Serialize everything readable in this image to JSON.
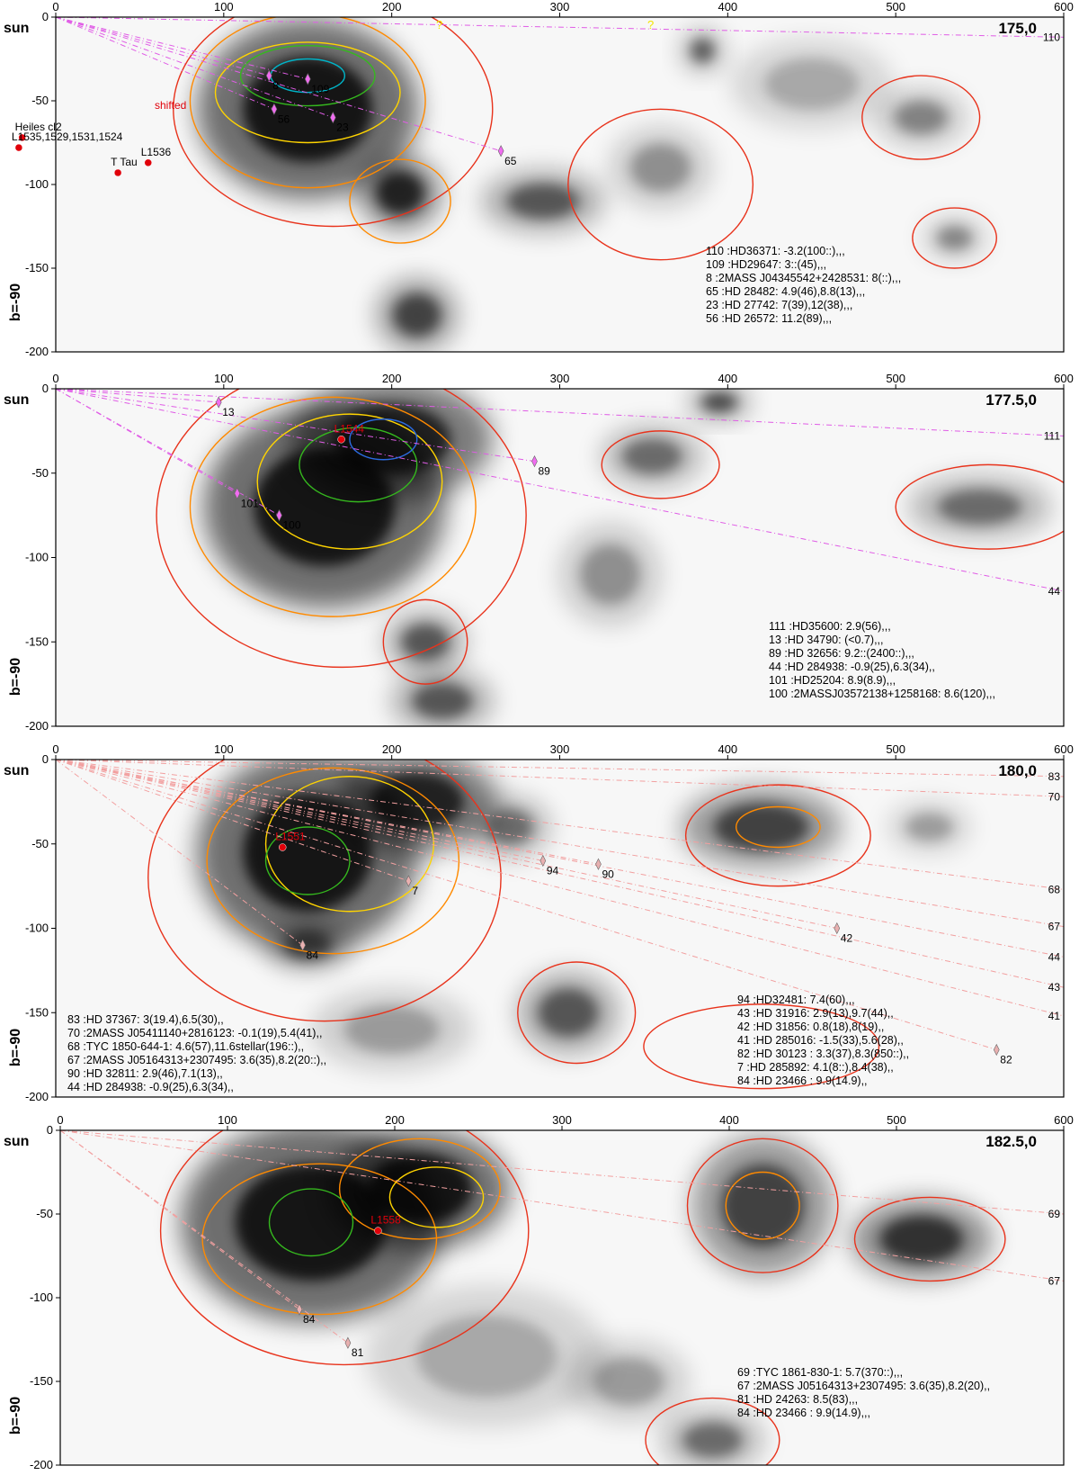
{
  "chart_data": [
    {
      "type": "heatmap",
      "title": "175,0",
      "xlabel": "",
      "ylabel": "b=-90",
      "origin_label": "sun",
      "xlim": [
        0,
        600
      ],
      "ylim": [
        -200,
        0
      ],
      "x_ticks": [
        0,
        100,
        200,
        300,
        400,
        500,
        600
      ],
      "y_ticks": [
        0,
        -50,
        -100,
        -150,
        -200
      ],
      "clouds": [
        {
          "name": "Heiles cl2",
          "x": -20,
          "y": -72
        },
        {
          "name": "L1535,1529,1531,1524",
          "x": -22,
          "y": -78
        },
        {
          "name": "L1536",
          "x": 55,
          "y": -87
        },
        {
          "name": "T Tau",
          "x": 37,
          "y": -93
        }
      ],
      "annotations": [
        "shifted",
        "?",
        "?"
      ],
      "stars": [
        {
          "id": "110",
          "x": 600,
          "y": -12
        },
        {
          "id": "109",
          "x": 150,
          "y": -37
        },
        {
          "id": "8",
          "x": 127,
          "y": -35
        },
        {
          "id": "65",
          "x": 265,
          "y": -80
        },
        {
          "id": "23",
          "x": 165,
          "y": -60
        },
        {
          "id": "56",
          "x": 130,
          "y": -55
        }
      ],
      "legend": [
        "110 :HD36371:  -3.2(100::),,,",
        "109 :HD29647:  3::(45),,,",
        "8 :2MASS J04345542+2428531:  8(::),,,",
        "65 :HD 28482:  4.9(46),8.8(13),,,",
        "23 :HD 27742:  7(39),12(38),,,",
        "56 :HD 26572:  11.2(89),,,"
      ]
    },
    {
      "type": "heatmap",
      "title": "177.5,0",
      "xlabel": "",
      "ylabel": "b=-90",
      "origin_label": "sun",
      "xlim": [
        0,
        600
      ],
      "ylim": [
        -200,
        0
      ],
      "x_ticks": [
        0,
        100,
        200,
        300,
        400,
        500,
        600
      ],
      "y_ticks": [
        0,
        -50,
        -100,
        -150,
        -200
      ],
      "clouds": [
        {
          "name": "L1544",
          "x": 170,
          "y": -30
        }
      ],
      "stars": [
        {
          "id": "13",
          "x": 97,
          "y": -8
        },
        {
          "id": "111",
          "x": 600,
          "y": -28
        },
        {
          "id": "89",
          "x": 285,
          "y": -43
        },
        {
          "id": "44",
          "x": 600,
          "y": -120
        },
        {
          "id": "101",
          "x": 108,
          "y": -62
        },
        {
          "id": "100",
          "x": 133,
          "y": -75
        }
      ],
      "legend": [
        "111 :HD35600:  2.9(56),,,",
        "13 :HD 34790:  (<0.7),,,",
        "89 :HD 32656:  9.2::(2400::),,,",
        "44 :HD 284938:  -0.9(25),6.3(34),,",
        "101 :HD25204:  8.9(8.9),,,",
        "100 :2MASSJ03572138+1258168:  8.6(120),,,"
      ]
    },
    {
      "type": "heatmap",
      "title": "180,0",
      "xlabel": "",
      "ylabel": "b=-90",
      "origin_label": "sun",
      "xlim": [
        0,
        600
      ],
      "ylim": [
        -200,
        0
      ],
      "x_ticks": [
        0,
        100,
        200,
        300,
        400,
        500,
        600
      ],
      "y_ticks": [
        0,
        -50,
        -100,
        -150,
        -200
      ],
      "clouds": [
        {
          "name": "L1551",
          "x": 135,
          "y": -52
        }
      ],
      "stars": [
        {
          "id": "83",
          "x": 600,
          "y": -10
        },
        {
          "id": "70",
          "x": 600,
          "y": -22
        },
        {
          "id": "94",
          "x": 290,
          "y": -60
        },
        {
          "id": "90",
          "x": 323,
          "y": -62
        },
        {
          "id": "7",
          "x": 210,
          "y": -72
        },
        {
          "id": "68",
          "x": 600,
          "y": -77
        },
        {
          "id": "42",
          "x": 465,
          "y": -100
        },
        {
          "id": "67",
          "x": 600,
          "y": -99
        },
        {
          "id": "84",
          "x": 147,
          "y": -110
        },
        {
          "id": "44",
          "x": 600,
          "y": -117
        },
        {
          "id": "43",
          "x": 600,
          "y": -135
        },
        {
          "id": "41",
          "x": 600,
          "y": -152
        },
        {
          "id": "82",
          "x": 560,
          "y": -172
        }
      ],
      "legend_left": [
        "83 :HD 37367:  3(19.4),6.5(30),,",
        "70 :2MASS J05411140+2816123:  -0.1(19),5.4(41),,",
        "68 :TYC 1850-644-1:  4.6(57),11.6stellar(196::),,",
        "67 :2MASS J05164313+2307495:  3.6(35),8.2(20::),,",
        "90 :HD 32811:  2.9(46),7.1(13),,",
        "44 :HD 284938:  -0.9(25),6.3(34),,"
      ],
      "legend_right": [
        "94 :HD32481:  7.4(60),,,",
        "43 :HD 31916:  2.9(13),9.7(44),,",
        "42 :HD 31856:  0.8(18),8(19),,",
        "41 :HD 285016:  -1.5(33),5.6(28),,",
        "82 :HD 30123 :  3.3(37),8.3(850::),,",
        "7 :HD 285892:  4.1(8::),8.4(38),,",
        "84 :HD 23466 :  9.9(14.9),,"
      ]
    },
    {
      "type": "heatmap",
      "title": "182.5,0",
      "xlabel": "",
      "ylabel": "b=-90",
      "origin_label": "sun",
      "xlim": [
        0,
        600
      ],
      "ylim": [
        -200,
        0
      ],
      "x_ticks": [
        0,
        100,
        200,
        300,
        400,
        500,
        600
      ],
      "y_ticks": [
        0,
        -50,
        -100,
        -150,
        -200
      ],
      "clouds": [
        {
          "name": "L1558",
          "x": 190,
          "y": -60
        }
      ],
      "stars": [
        {
          "id": "69",
          "x": 600,
          "y": -50
        },
        {
          "id": "67",
          "x": 600,
          "y": -90
        },
        {
          "id": "84",
          "x": 143,
          "y": -107
        },
        {
          "id": "81",
          "x": 172,
          "y": -127
        }
      ],
      "legend": [
        "69 :TYC 1861-830-1:  5.7(370::),,,",
        "67 :2MASS J05164313+2307495:  3.6(35),8.2(20),,",
        "81 :HD 24263:  8.5(83),,,",
        "84 :HD 23466 :  9.9(14.9),,,"
      ]
    }
  ]
}
